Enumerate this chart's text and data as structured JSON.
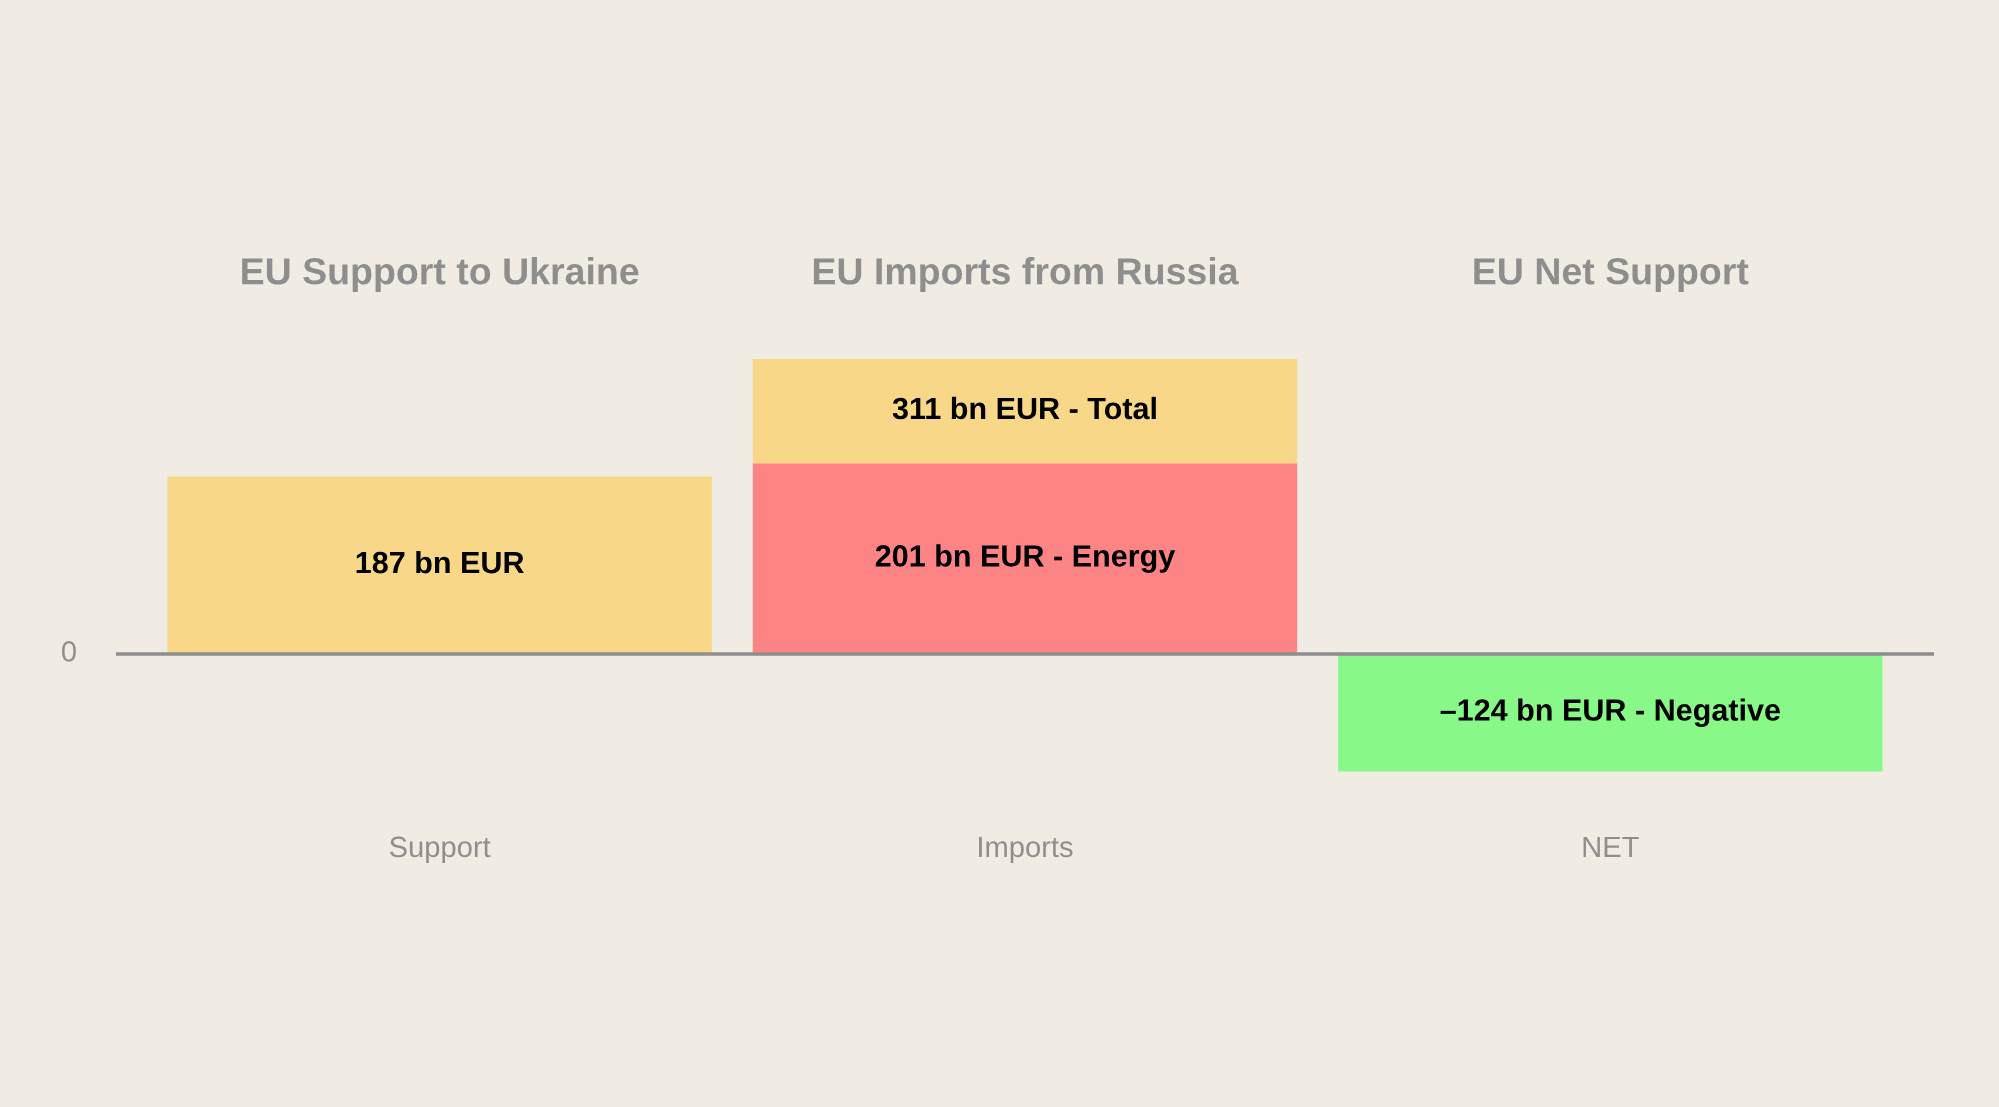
{
  "chart_data": {
    "type": "bar",
    "stacked": true,
    "categories": [
      "Support",
      "Imports",
      "NET"
    ],
    "series": [
      {
        "colors": [
          "#f8d888",
          "#fc8484",
          "#88f888"
        ],
        "values": [
          187,
          201,
          -124
        ],
        "value_labels": [
          "187 bn EUR",
          "201 bn EUR - Energy",
          "–124 bn EUR - Negative"
        ]
      },
      {
        "color": "#f8d888",
        "values": [
          null,
          110,
          null
        ]
      }
    ],
    "totals": [
      null,
      "311 bn EUR - Total",
      null
    ],
    "annotations": [
      "EU Support to Ukraine",
      "EU Imports from Russia",
      "EU Net Support",
      "0"
    ],
    "ref_lines": [
      {
        "axis": "y",
        "value": 0,
        "color": "#8e8e8e"
      }
    ],
    "grid": false,
    "legend": false
  }
}
